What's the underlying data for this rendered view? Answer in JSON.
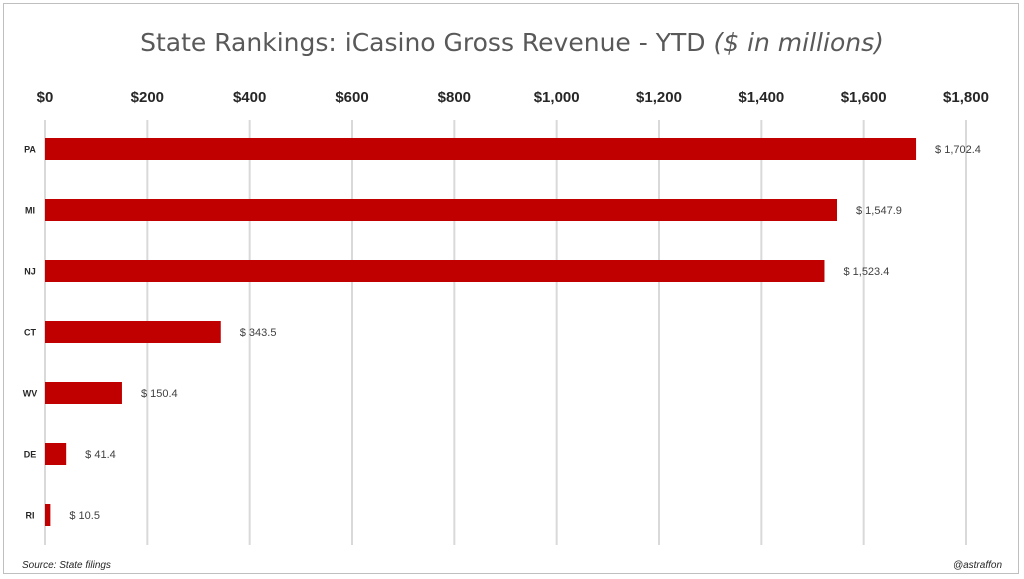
{
  "title": "State Rankings: iCasino Gross Revenue - YTD",
  "title_unit": "($ in millions)",
  "source": "Source: State filings",
  "credit": "@astraffon",
  "colors": {
    "bar": "#c00000",
    "grid": "#d9d9d9",
    "tick_text": "#262626",
    "label_text": "#404040"
  },
  "chart_data": {
    "type": "bar",
    "orientation": "horizontal",
    "categories": [
      "PA",
      "MI",
      "NJ",
      "CT",
      "WV",
      "DE",
      "RI"
    ],
    "values": [
      1702.4,
      1547.9,
      1523.4,
      343.5,
      150.4,
      41.4,
      10.5
    ],
    "value_labels": [
      "$ 1,702.4",
      "$ 1,547.9",
      "$ 1,523.4",
      "$ 343.5",
      "$ 150.4",
      "$ 41.4",
      "$ 10.5"
    ],
    "xlim": [
      0,
      1800
    ],
    "x_ticks": [
      0,
      200,
      400,
      600,
      800,
      1000,
      1200,
      1400,
      1600,
      1800
    ],
    "x_tick_labels": [
      "$0",
      "$200",
      "$400",
      "$600",
      "$800",
      "$1,000",
      "$1,200",
      "$1,400",
      "$1,600",
      "$1,800"
    ],
    "x_axis_position": "top",
    "grid": true
  }
}
